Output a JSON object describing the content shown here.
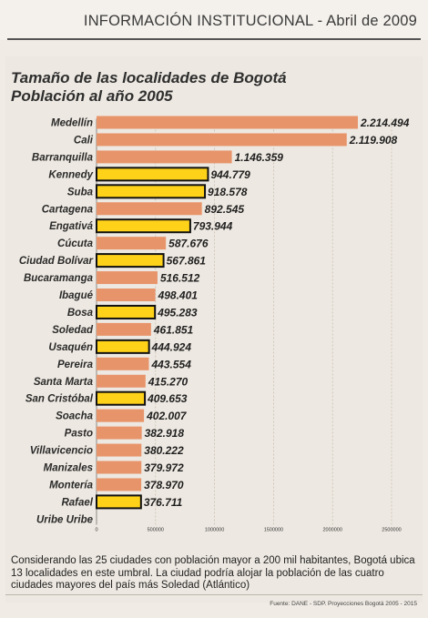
{
  "header": {
    "text": "INFORMACIÓN INSTITUCIONAL - Abril de 2009"
  },
  "chart_data": {
    "type": "bar",
    "orientation": "horizontal",
    "title_line1": "Tamaño de las localidades de Bogotá",
    "title_line2": "Población al año 2005",
    "xlim": [
      0,
      2500000
    ],
    "x_ticks": [
      "0",
      "500000",
      "1000000",
      "1500000",
      "2000000",
      "2500000"
    ],
    "grid": "vertical",
    "colors": {
      "city": "#e8946a",
      "bogota_locality": "#ffd21a",
      "outline": "#111111"
    },
    "bars": [
      {
        "label": "Medellín",
        "value": 2214494,
        "value_label": "2.214.494",
        "highlight": false
      },
      {
        "label": "Cali",
        "value": 2119908,
        "value_label": "2.119.908",
        "highlight": false
      },
      {
        "label": "Barranquilla",
        "value": 1146359,
        "value_label": "1.146.359",
        "highlight": false
      },
      {
        "label": "Kennedy",
        "value": 944779,
        "value_label": "944.779",
        "highlight": true
      },
      {
        "label": "Suba",
        "value": 918578,
        "value_label": "918.578",
        "highlight": true
      },
      {
        "label": "Cartagena",
        "value": 892545,
        "value_label": "892.545",
        "highlight": false
      },
      {
        "label": "Engativá",
        "value": 793944,
        "value_label": "793.944",
        "highlight": true
      },
      {
        "label": "Cúcuta",
        "value": 587676,
        "value_label": "587.676",
        "highlight": false
      },
      {
        "label": "Ciudad Bolívar",
        "value": 567861,
        "value_label": "567.861",
        "highlight": true
      },
      {
        "label": "Bucaramanga",
        "value": 516512,
        "value_label": "516.512",
        "highlight": false
      },
      {
        "label": "Ibagué",
        "value": 498401,
        "value_label": "498.401",
        "highlight": false
      },
      {
        "label": "Bosa",
        "value": 495283,
        "value_label": "495.283",
        "highlight": true
      },
      {
        "label": "Soledad",
        "value": 461851,
        "value_label": "461.851",
        "highlight": false
      },
      {
        "label": "Usaquén",
        "value": 444924,
        "value_label": "444.924",
        "highlight": true
      },
      {
        "label": "Pereira",
        "value": 443554,
        "value_label": "443.554",
        "highlight": false
      },
      {
        "label": "Santa Marta",
        "value": 415270,
        "value_label": "415.270",
        "highlight": false
      },
      {
        "label": "San Cristóbal",
        "value": 409653,
        "value_label": "409.653",
        "highlight": true
      },
      {
        "label": "Soacha",
        "value": 402007,
        "value_label": "402.007",
        "highlight": false
      },
      {
        "label": "Pasto",
        "value": 382918,
        "value_label": "382.918",
        "highlight": false
      },
      {
        "label": "Villavicencio",
        "value": 380222,
        "value_label": "380.222",
        "highlight": false
      },
      {
        "label": "Manizales",
        "value": 379972,
        "value_label": "379.972",
        "highlight": false
      },
      {
        "label": "Montería",
        "value": 378970,
        "value_label": "378.970",
        "highlight": false
      },
      {
        "label": "Rafael",
        "value": 376711,
        "value_label": "376.711",
        "highlight": true
      },
      {
        "label": "Uribe Uribe",
        "value": null,
        "value_label": "",
        "highlight": false
      }
    ]
  },
  "caption": "Considerando las 25 ciudades con población mayor a 200 mil habitantes, Bogotá ubica 13 localidades en este umbral. La ciudad podría alojar la población de las cuatro ciudades mayores del país más Soledad (Atlántico)",
  "source": "Fuente: DANE - SDP. Proyecciones Bogotá 2005 - 2015"
}
